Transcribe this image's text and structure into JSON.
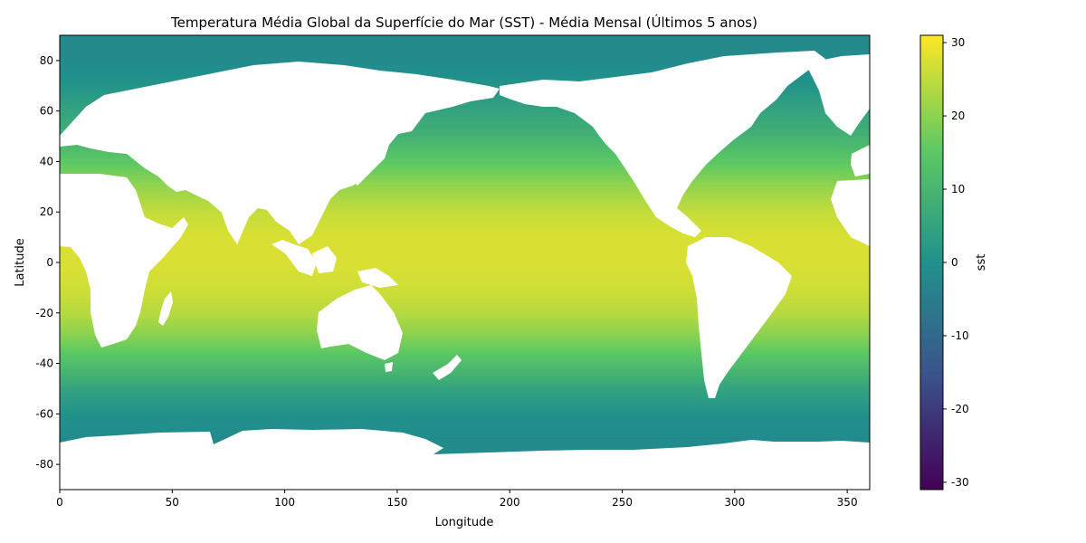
{
  "chart_data": {
    "type": "heatmap",
    "title": "Temperatura Média Global da Superfície do Mar (SST) - Média Mensal (Últimos 5 anos)",
    "xlabel": "Longitude",
    "ylabel": "Latitude",
    "xlim": [
      0,
      360
    ],
    "ylim": [
      -90,
      90
    ],
    "xticks": [
      0,
      50,
      100,
      150,
      200,
      250,
      300,
      350
    ],
    "yticks": [
      -80,
      -60,
      -40,
      -20,
      0,
      20,
      40,
      60,
      80
    ],
    "grid": false,
    "colormap": "viridis",
    "colorbar": {
      "label": "sst",
      "range": [
        -31,
        31
      ],
      "ticks": [
        -30,
        -20,
        -10,
        0,
        10,
        20,
        30
      ]
    },
    "missing_color": "#ffffff",
    "zonal_profile": {
      "lat": [
        -90,
        -78,
        -70,
        -60,
        -50,
        -40,
        -30,
        -20,
        -10,
        0,
        10,
        20,
        30,
        40,
        50,
        60,
        70,
        80,
        90
      ],
      "value": [
        -1.8,
        -1.8,
        -1.5,
        0,
        5,
        12,
        19,
        24,
        26.5,
        27.5,
        27.5,
        25.5,
        21,
        15,
        9,
        5,
        1,
        -1.5,
        -1.8
      ]
    }
  },
  "colors": {
    "viridis_stops": [
      "#440154",
      "#3b528b",
      "#21918c",
      "#5ec962",
      "#fde725"
    ]
  }
}
